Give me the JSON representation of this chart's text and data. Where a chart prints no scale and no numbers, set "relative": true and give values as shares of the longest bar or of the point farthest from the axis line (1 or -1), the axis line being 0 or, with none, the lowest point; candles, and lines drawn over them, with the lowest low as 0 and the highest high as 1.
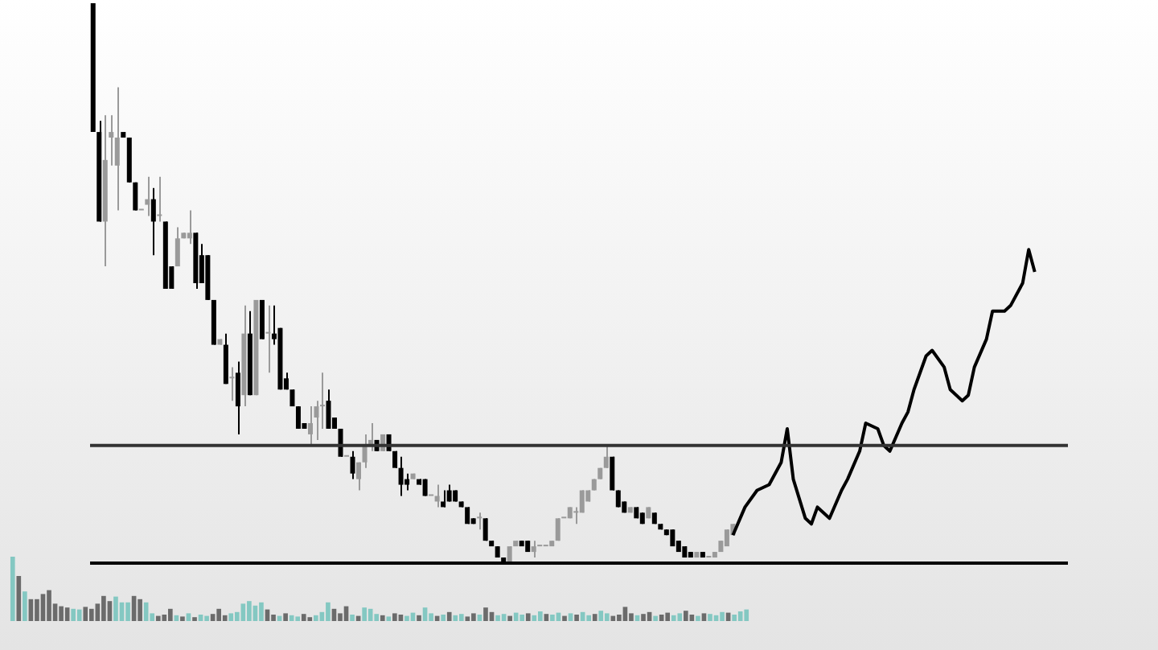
{
  "chart_data": [
    {
      "type": "candlestick",
      "relative": true,
      "legend": false,
      "colors": [
        "#000000",
        "#000000",
        "#9a9a9a",
        "#9a9a9a",
        "#9a9a9a",
        "#000000",
        "#000000",
        "#000000",
        "#9a9a9a",
        "#9a9a9a",
        "#000000",
        "#9a9a9a",
        "#000000",
        "#000000",
        "#9a9a9a",
        "#9a9a9a",
        "#9a9a9a",
        "#000000",
        "#000000",
        "#000000",
        "#000000",
        "#9a9a9a",
        "#000000",
        "#9a9a9a",
        "#000000",
        "#9a9a9a",
        "#000000",
        "#9a9a9a",
        "#000000",
        "#9a9a9a",
        "#000000",
        "#000000",
        "#000000",
        "#000000",
        "#000000",
        "#000000",
        "#9a9a9a",
        "#9a9a9a",
        "#9a9a9a",
        "#000000",
        "#000000",
        "#000000",
        "#9a9a9a",
        "#000000",
        "#9a9a9a",
        "#9a9a9a",
        "#9a9a9a",
        "#000000",
        "#9a9a9a",
        "#000000",
        "#000000",
        "#000000",
        "#000000",
        "#9a9a9a",
        "#000000",
        "#000000",
        "#9a9a9a",
        "#9a9a9a",
        "#000000",
        "#000000",
        "#000000",
        "#000000",
        "#000000",
        "#000000",
        "#9a9a9a",
        "#000000",
        "#000000",
        "#000000",
        "#000000",
        "#9a9a9a",
        "#9a9a9a",
        "#000000",
        "#000000",
        "#9a9a9a",
        "#9a9a9a",
        "#9a9a9a",
        "#9a9a9a",
        "#9a9a9a",
        "#9a9a9a",
        "#9a9a9a",
        "#9a9a9a",
        "#9a9a9a",
        "#9a9a9a",
        "#9a9a9a",
        "#9a9a9a",
        "#9a9a9a",
        "#000000",
        "#000000",
        "#000000",
        "#9a9a9a",
        "#000000",
        "#000000",
        "#9a9a9a",
        "#000000",
        "#000000",
        "#000000",
        "#000000",
        "#000000",
        "#000000",
        "#000000",
        "#9a9a9a",
        "#000000",
        "#9a9a9a",
        "#9a9a9a",
        "#9a9a9a",
        "#9a9a9a",
        "#9a9a9a",
        null,
        null,
        null,
        null,
        null,
        null,
        null,
        null,
        null,
        null,
        null,
        null,
        null,
        null,
        null,
        null,
        null,
        null,
        null,
        null,
        null,
        null,
        null,
        null,
        null,
        null,
        null,
        null,
        null,
        null,
        null,
        null,
        null,
        null,
        null,
        null,
        null,
        null,
        null,
        null,
        null,
        null,
        null,
        null,
        null,
        null,
        null,
        null,
        null,
        null,
        null,
        null,
        null,
        null,
        null
      ],
      "categories": [
        null,
        null,
        null,
        null,
        null,
        null,
        null,
        null,
        null,
        null,
        null,
        null,
        null,
        null,
        null,
        null,
        null,
        null,
        null,
        null,
        null,
        null,
        null,
        null,
        null,
        null,
        null,
        null,
        null,
        null,
        null,
        null,
        null,
        null,
        null,
        null,
        null,
        null,
        null,
        null,
        null,
        null,
        null,
        null,
        null,
        null,
        null,
        null,
        null,
        null,
        null,
        null,
        null,
        null,
        null,
        null,
        null,
        null,
        null,
        null,
        null,
        null,
        null,
        null,
        null,
        null,
        null,
        null,
        null,
        null,
        null,
        null,
        null,
        null,
        null,
        null,
        null,
        null,
        null,
        null,
        null,
        null,
        null,
        null,
        null,
        null,
        null,
        null,
        null,
        null,
        null,
        null,
        null,
        null,
        null,
        null,
        null,
        null,
        null,
        null,
        null,
        null,
        null,
        null,
        null,
        null,
        null,
        null,
        null,
        null,
        null,
        null,
        null,
        null,
        null,
        null,
        null,
        null,
        null,
        null,
        null,
        null,
        null,
        null,
        null,
        null,
        null,
        null,
        null,
        null,
        null,
        null,
        null,
        null,
        null,
        null,
        null,
        null,
        null,
        null,
        null,
        null,
        null,
        null,
        null,
        null,
        null,
        null,
        null,
        null,
        null,
        null,
        null,
        null,
        null,
        null,
        null,
        null,
        null,
        null,
        null,
        null
      ],
      "ohlc": [
        [
          1.0,
          1.0,
          0.77,
          0.77
        ],
        [
          0.77,
          0.79,
          0.61,
          0.61
        ],
        [
          0.61,
          0.8,
          0.53,
          0.72
        ],
        [
          0.76,
          0.8,
          0.71,
          0.77
        ],
        [
          0.71,
          0.85,
          0.63,
          0.76
        ],
        [
          0.77,
          0.77,
          0.76,
          0.76
        ],
        [
          0.76,
          0.76,
          0.68,
          0.68
        ],
        [
          0.68,
          0.68,
          0.63,
          0.63
        ],
        [
          0.63,
          0.63,
          0.63,
          0.63
        ],
        [
          0.64,
          0.69,
          0.62,
          0.65
        ],
        [
          0.65,
          0.67,
          0.55,
          0.61
        ],
        [
          0.62,
          0.69,
          0.61,
          0.62
        ],
        [
          0.61,
          0.61,
          0.49,
          0.49
        ],
        [
          0.53,
          0.53,
          0.49,
          0.49
        ],
        [
          0.53,
          0.6,
          0.53,
          0.58
        ],
        [
          0.58,
          0.59,
          0.58,
          0.59
        ],
        [
          0.58,
          0.63,
          0.57,
          0.59
        ],
        [
          0.59,
          0.59,
          0.49,
          0.5
        ],
        [
          0.55,
          0.57,
          0.5,
          0.5
        ],
        [
          0.55,
          0.55,
          0.47,
          0.47
        ],
        [
          0.47,
          0.47,
          0.39,
          0.39
        ],
        [
          0.39,
          0.4,
          0.39,
          0.4
        ],
        [
          0.39,
          0.41,
          0.32,
          0.32
        ],
        [
          0.33,
          0.35,
          0.29,
          0.33
        ],
        [
          0.34,
          0.36,
          0.23,
          0.28
        ],
        [
          0.3,
          0.46,
          0.28,
          0.41
        ],
        [
          0.41,
          0.45,
          0.3,
          0.3
        ],
        [
          0.3,
          0.47,
          0.3,
          0.47
        ],
        [
          0.47,
          0.47,
          0.4,
          0.4
        ],
        [
          0.41,
          0.46,
          0.34,
          0.41
        ],
        [
          0.41,
          0.46,
          0.39,
          0.4
        ],
        [
          0.42,
          0.42,
          0.31,
          0.31
        ],
        [
          0.33,
          0.34,
          0.31,
          0.31
        ],
        [
          0.31,
          0.31,
          0.28,
          0.28
        ],
        [
          0.28,
          0.28,
          0.24,
          0.24
        ],
        [
          0.25,
          0.25,
          0.24,
          0.24
        ],
        [
          0.23,
          0.28,
          0.21,
          0.25
        ],
        [
          0.26,
          0.29,
          0.22,
          0.28
        ],
        [
          0.28,
          0.34,
          0.24,
          0.28
        ],
        [
          0.29,
          0.31,
          0.24,
          0.24
        ],
        [
          0.26,
          0.26,
          0.24,
          0.24
        ],
        [
          0.24,
          0.24,
          0.19,
          0.19
        ],
        [
          0.19,
          0.19,
          0.19,
          0.19
        ],
        [
          0.19,
          0.2,
          0.15,
          0.16
        ],
        [
          0.15,
          0.18,
          0.13,
          0.18
        ],
        [
          0.18,
          0.23,
          0.17,
          0.21
        ],
        [
          0.21,
          0.25,
          0.2,
          0.22
        ],
        [
          0.22,
          0.22,
          0.2,
          0.2
        ],
        [
          0.2,
          0.23,
          0.2,
          0.23
        ],
        [
          0.23,
          0.23,
          0.2,
          0.2
        ],
        [
          0.2,
          0.2,
          0.17,
          0.17
        ],
        [
          0.17,
          0.19,
          0.12,
          0.14
        ],
        [
          0.15,
          0.16,
          0.13,
          0.14
        ],
        [
          0.15,
          0.16,
          0.15,
          0.16
        ],
        [
          0.15,
          0.15,
          0.14,
          0.14
        ],
        [
          0.15,
          0.15,
          0.12,
          0.12
        ],
        [
          0.12,
          0.12,
          0.12,
          0.12
        ],
        [
          0.11,
          0.14,
          0.1,
          0.12
        ],
        [
          0.11,
          0.13,
          0.1,
          0.1
        ],
        [
          0.13,
          0.14,
          0.11,
          0.11
        ],
        [
          0.13,
          0.13,
          0.11,
          0.11
        ],
        [
          0.11,
          0.11,
          0.1,
          0.1
        ],
        [
          0.1,
          0.1,
          0.07,
          0.07
        ],
        [
          0.08,
          0.08,
          0.07,
          0.07
        ],
        [
          0.08,
          0.09,
          0.06,
          0.08
        ],
        [
          0.08,
          0.08,
          0.04,
          0.04
        ],
        [
          0.04,
          0.04,
          0.03,
          0.03
        ],
        [
          0.03,
          0.03,
          0.01,
          0.01
        ],
        [
          0.01,
          0.01,
          0.0,
          0.0
        ],
        [
          0.0,
          0.03,
          0.0,
          0.03
        ],
        [
          0.03,
          0.04,
          0.03,
          0.04
        ],
        [
          0.04,
          0.04,
          0.03,
          0.03
        ],
        [
          0.04,
          0.04,
          0.02,
          0.02
        ],
        [
          0.02,
          0.04,
          0.01,
          0.03
        ],
        [
          0.03,
          0.03,
          0.03,
          0.03
        ],
        [
          0.03,
          0.03,
          0.03,
          0.03
        ],
        [
          0.03,
          0.04,
          0.03,
          0.04
        ],
        [
          0.04,
          0.08,
          0.04,
          0.08
        ],
        [
          0.08,
          0.08,
          0.08,
          0.08
        ],
        [
          0.08,
          0.1,
          0.08,
          0.1
        ],
        [
          0.09,
          0.1,
          0.07,
          0.09
        ],
        [
          0.09,
          0.13,
          0.09,
          0.13
        ],
        [
          0.11,
          0.13,
          0.11,
          0.13
        ],
        [
          0.13,
          0.15,
          0.13,
          0.15
        ],
        [
          0.15,
          0.17,
          0.15,
          0.17
        ],
        [
          0.17,
          0.21,
          0.17,
          0.19
        ],
        [
          0.19,
          0.19,
          0.13,
          0.13
        ],
        [
          0.13,
          0.13,
          0.1,
          0.1
        ],
        [
          0.11,
          0.11,
          0.09,
          0.09
        ],
        [
          0.09,
          0.1,
          0.09,
          0.1
        ],
        [
          0.1,
          0.1,
          0.08,
          0.08
        ],
        [
          0.09,
          0.09,
          0.07,
          0.07
        ],
        [
          0.08,
          0.1,
          0.08,
          0.1
        ],
        [
          0.09,
          0.09,
          0.07,
          0.07
        ],
        [
          0.07,
          0.07,
          0.06,
          0.06
        ],
        [
          0.06,
          0.06,
          0.05,
          0.05
        ],
        [
          0.06,
          0.06,
          0.03,
          0.03
        ],
        [
          0.04,
          0.04,
          0.02,
          0.02
        ],
        [
          0.03,
          0.03,
          0.01,
          0.01
        ],
        [
          0.02,
          0.02,
          0.01,
          0.01
        ],
        [
          0.01,
          0.02,
          0.01,
          0.02
        ],
        [
          0.02,
          0.02,
          0.01,
          0.01
        ],
        [
          0.01,
          0.01,
          0.01,
          0.01
        ],
        [
          0.01,
          0.02,
          0.01,
          0.02
        ],
        [
          0.02,
          0.04,
          0.02,
          0.04
        ],
        [
          0.03,
          0.06,
          0.03,
          0.06
        ],
        [
          0.05,
          0.07,
          0.05,
          0.07
        ],
        null,
        null,
        null,
        null,
        null,
        null,
        null,
        null,
        null,
        null,
        null,
        null,
        null,
        null,
        null,
        null,
        null,
        null,
        null,
        null,
        null,
        null,
        null,
        null,
        null,
        null,
        null,
        null,
        null,
        null,
        null,
        null,
        null,
        null,
        null,
        null,
        null,
        null,
        null,
        null,
        null,
        null,
        null,
        null,
        null,
        null,
        null,
        null,
        null,
        null,
        null,
        null,
        null,
        null,
        null
      ],
      "series": [
        {
          "type": "line",
          "color": "#000000",
          "values": [
            null,
            null,
            null,
            null,
            null,
            null,
            null,
            null,
            null,
            null,
            null,
            null,
            null,
            null,
            null,
            null,
            null,
            null,
            null,
            null,
            null,
            null,
            null,
            null,
            null,
            null,
            null,
            null,
            null,
            null,
            null,
            null,
            null,
            null,
            null,
            null,
            null,
            null,
            null,
            null,
            null,
            null,
            null,
            null,
            null,
            null,
            null,
            null,
            null,
            null,
            null,
            null,
            null,
            null,
            null,
            null,
            null,
            null,
            null,
            null,
            null,
            null,
            null,
            null,
            null,
            null,
            null,
            null,
            null,
            null,
            null,
            null,
            null,
            null,
            null,
            null,
            null,
            null,
            null,
            null,
            null,
            null,
            null,
            null,
            null,
            null,
            null,
            null,
            null,
            null,
            null,
            null,
            null,
            null,
            null,
            null,
            null,
            null,
            null,
            null,
            null,
            null,
            null,
            null,
            null,
            null,
            0.05,
            null,
            0.1,
            null,
            0.13,
            null,
            0.14,
            null,
            0.18,
            0.24,
            0.15,
            null,
            0.08,
            0.07,
            0.1,
            null,
            0.08,
            null,
            0.13,
            0.15,
            null,
            0.2,
            0.25,
            null,
            0.24,
            0.21,
            0.2,
            null,
            0.25,
            0.27,
            0.31,
            null,
            0.37,
            0.38,
            null,
            0.35,
            0.31,
            null,
            0.29,
            0.3,
            0.35,
            null,
            0.4,
            0.45,
            null,
            0.45,
            0.46,
            null,
            0.5,
            0.56,
            0.52,
            null,
            null,
            null,
            null,
            null
          ]
        }
      ],
      "ref_lines": [
        {
          "axis": "y",
          "value": 0.21,
          "color": "#333333"
        },
        {
          "axis": "y",
          "value": 0.0,
          "color": "#000000"
        }
      ]
    },
    {
      "type": "bar",
      "relative": true,
      "legend": false,
      "categories": [
        null,
        null,
        null,
        null,
        null,
        null,
        null,
        null,
        null,
        null,
        null,
        null,
        null,
        null,
        null,
        null,
        null,
        null,
        null,
        null,
        null,
        null,
        null,
        null,
        null,
        null,
        null,
        null,
        null,
        null,
        null,
        null,
        null,
        null,
        null,
        null,
        null,
        null,
        null,
        null,
        null,
        null,
        null,
        null,
        null,
        null,
        null,
        null,
        null,
        null,
        null,
        null,
        null,
        null,
        null,
        null,
        null,
        null,
        null,
        null,
        null,
        null,
        null,
        null,
        null,
        null,
        null,
        null,
        null,
        null,
        null,
        null,
        null,
        null,
        null,
        null,
        null,
        null,
        null,
        null,
        null,
        null,
        null,
        null,
        null,
        null,
        null,
        null,
        null,
        null,
        null,
        null,
        null,
        null,
        null,
        null,
        null,
        null,
        null,
        null,
        null,
        null,
        null,
        null,
        null,
        null,
        null,
        null,
        null,
        null,
        null,
        null,
        null,
        null,
        null,
        null,
        null,
        null,
        null,
        null,
        null,
        null
      ],
      "values": [
        1.0,
        0.7,
        0.46,
        0.34,
        0.34,
        0.42,
        0.48,
        0.27,
        0.23,
        0.21,
        0.19,
        0.18,
        0.22,
        0.19,
        0.27,
        0.39,
        0.31,
        0.38,
        0.29,
        0.29,
        0.39,
        0.34,
        0.29,
        0.12,
        0.08,
        0.1,
        0.19,
        0.09,
        0.07,
        0.12,
        0.06,
        0.1,
        0.08,
        0.11,
        0.19,
        0.09,
        0.12,
        0.14,
        0.27,
        0.31,
        0.24,
        0.29,
        0.18,
        0.1,
        0.08,
        0.12,
        0.09,
        0.07,
        0.11,
        0.06,
        0.09,
        0.14,
        0.29,
        0.19,
        0.12,
        0.23,
        0.1,
        0.08,
        0.21,
        0.19,
        0.11,
        0.09,
        0.07,
        0.12,
        0.1,
        0.08,
        0.13,
        0.09,
        0.21,
        0.12,
        0.08,
        0.1,
        0.14,
        0.09,
        0.11,
        0.07,
        0.12,
        0.1,
        0.21,
        0.14,
        0.09,
        0.11,
        0.08,
        0.13,
        0.1,
        0.12,
        0.09,
        0.15,
        0.11,
        0.1,
        0.13,
        0.08,
        0.12,
        0.1,
        0.14,
        0.09,
        0.11,
        0.16,
        0.12,
        0.08,
        0.1,
        0.22,
        0.12,
        0.09,
        0.11,
        0.14,
        0.08,
        0.1,
        0.13,
        0.09,
        0.12,
        0.16,
        0.1,
        0.08,
        0.12,
        0.11,
        0.09,
        0.14,
        0.13,
        0.1,
        0.15,
        0.18
      ],
      "colors": [
        "#84c8c2",
        "#6b6b6b",
        "#84c8c2",
        "#6b6b6b",
        "#6b6b6b",
        "#6b6b6b",
        "#6b6b6b",
        "#6b6b6b",
        "#6b6b6b",
        "#6b6b6b",
        "#84c8c2",
        "#84c8c2",
        "#6b6b6b",
        "#6b6b6b",
        "#6b6b6b",
        "#6b6b6b",
        "#6b6b6b",
        "#84c8c2",
        "#84c8c2",
        "#84c8c2",
        "#6b6b6b",
        "#6b6b6b",
        "#84c8c2",
        "#84c8c2",
        "#6b6b6b",
        "#6b6b6b",
        "#6b6b6b",
        "#84c8c2",
        "#6b6b6b",
        "#84c8c2",
        "#6b6b6b",
        "#84c8c2",
        "#84c8c2",
        "#6b6b6b",
        "#6b6b6b",
        "#6b6b6b",
        "#84c8c2",
        "#84c8c2",
        "#84c8c2",
        "#84c8c2",
        "#84c8c2",
        "#84c8c2",
        "#6b6b6b",
        "#6b6b6b",
        "#84c8c2",
        "#6b6b6b",
        "#84c8c2",
        "#84c8c2",
        "#6b6b6b",
        "#6b6b6b",
        "#84c8c2",
        "#84c8c2",
        "#84c8c2",
        "#6b6b6b",
        "#6b6b6b",
        "#6b6b6b",
        "#84c8c2",
        "#6b6b6b",
        "#84c8c2",
        "#84c8c2",
        "#84c8c2",
        "#6b6b6b",
        "#84c8c2",
        "#6b6b6b",
        "#6b6b6b",
        "#84c8c2",
        "#84c8c2",
        "#6b6b6b",
        "#84c8c2",
        "#84c8c2",
        "#6b6b6b",
        "#84c8c2",
        "#6b6b6b",
        "#84c8c2",
        "#84c8c2",
        "#6b6b6b",
        "#6b6b6b",
        "#84c8c2",
        "#6b6b6b",
        "#6b6b6b",
        "#84c8c2",
        "#84c8c2",
        "#6b6b6b",
        "#84c8c2",
        "#84c8c2",
        "#6b6b6b",
        "#84c8c2",
        "#84c8c2",
        "#6b6b6b",
        "#84c8c2",
        "#84c8c2",
        "#6b6b6b",
        "#84c8c2",
        "#6b6b6b",
        "#84c8c2",
        "#84c8c2",
        "#6b6b6b",
        "#84c8c2",
        "#84c8c2",
        "#6b6b6b",
        "#6b6b6b",
        "#6b6b6b",
        "#6b6b6b",
        "#84c8c2",
        "#6b6b6b",
        "#6b6b6b",
        "#84c8c2",
        "#6b6b6b",
        "#6b6b6b",
        "#84c8c2",
        "#84c8c2",
        "#6b6b6b",
        "#6b6b6b",
        "#84c8c2",
        "#6b6b6b",
        "#84c8c2",
        "#84c8c2",
        "#84c8c2",
        "#6b6b6b",
        "#84c8c2",
        "#84c8c2",
        "#84c8c2"
      ]
    }
  ]
}
